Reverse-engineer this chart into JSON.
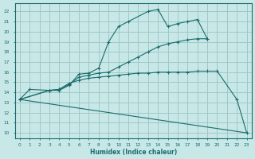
{
  "background_color": "#c8e8e8",
  "grid_color": "#a0c8c8",
  "line_color": "#1a6b6b",
  "xlabel": "Humidex (Indice chaleur)",
  "ylim": [
    9.5,
    22.8
  ],
  "xlim": [
    -0.5,
    23.5
  ],
  "yticks": [
    10,
    11,
    12,
    13,
    14,
    15,
    16,
    17,
    18,
    19,
    20,
    21,
    22
  ],
  "xticks": [
    0,
    1,
    2,
    3,
    4,
    5,
    6,
    7,
    8,
    9,
    10,
    11,
    12,
    13,
    14,
    15,
    16,
    17,
    18,
    19,
    20,
    21,
    22,
    23
  ],
  "line1_x": [
    0,
    1,
    3,
    4,
    5,
    6,
    7,
    8,
    9,
    10,
    11,
    13,
    14,
    15,
    16,
    17,
    18,
    19
  ],
  "line1_y": [
    13.3,
    14.3,
    14.2,
    14.2,
    14.7,
    15.8,
    15.9,
    16.4,
    19.0,
    20.5,
    21.0,
    22.0,
    22.2,
    20.5,
    20.8,
    21.0,
    21.2,
    19.3
  ],
  "line2_x": [
    0,
    3,
    4,
    5,
    6,
    7,
    8,
    9,
    10,
    11,
    12,
    13,
    14,
    15,
    16,
    17,
    18,
    19
  ],
  "line2_y": [
    13.3,
    14.2,
    14.3,
    14.8,
    15.5,
    15.7,
    15.9,
    16.0,
    16.5,
    17.0,
    17.5,
    18.0,
    18.5,
    18.8,
    19.0,
    19.2,
    19.3,
    19.3
  ],
  "line3_x": [
    0,
    3,
    4,
    5,
    6,
    7,
    8,
    9,
    10,
    11,
    12,
    13,
    14,
    15,
    16,
    17,
    18,
    19,
    20,
    22,
    23
  ],
  "line3_y": [
    13.3,
    14.2,
    14.3,
    14.9,
    15.2,
    15.4,
    15.5,
    15.6,
    15.7,
    15.8,
    15.9,
    15.9,
    16.0,
    16.0,
    16.0,
    16.0,
    16.1,
    16.1,
    16.1,
    13.3,
    10.0
  ],
  "line4_x": [
    0,
    23
  ],
  "line4_y": [
    13.3,
    10.0
  ]
}
